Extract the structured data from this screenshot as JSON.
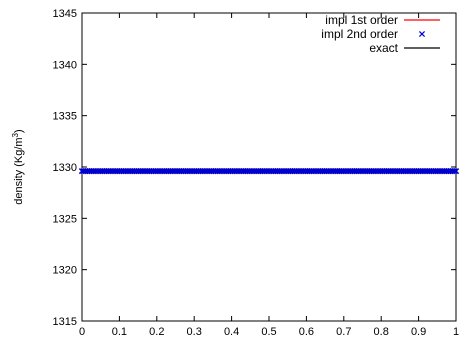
{
  "chart_data": {
    "type": "line",
    "title": "",
    "xlabel": "",
    "ylabel": "density (Kg/m",
    "ylabel_sup": "3",
    "ylabel_close": ")",
    "xlim": [
      0,
      1
    ],
    "ylim": [
      1315,
      1345
    ],
    "xticks": [
      0,
      0.1,
      0.2,
      0.3,
      0.4,
      0.5,
      0.6,
      0.7,
      0.8,
      0.9,
      1
    ],
    "xtick_labels": [
      "0",
      "0.1",
      "0.2",
      "0.3",
      "0.4",
      "0.5",
      "0.6",
      "0.7",
      "0.8",
      "0.9",
      "1"
    ],
    "yticks": [
      1315,
      1320,
      1325,
      1330,
      1335,
      1340,
      1345
    ],
    "ytick_labels": [
      "1315",
      "1320",
      "1325",
      "1330",
      "1335",
      "1340",
      "1345"
    ],
    "grid": false,
    "legend_position": "top-right",
    "series": [
      {
        "name": "impl 1st order",
        "style": "line",
        "color": "#ff0000",
        "x": [
          0,
          1
        ],
        "y": [
          1329.6,
          1329.6
        ]
      },
      {
        "name": "impl 2nd order",
        "style": "markers",
        "marker": "x",
        "color": "#0000cc",
        "x_range": [
          0,
          1
        ],
        "point_count": 200,
        "y_constant": 1329.6
      },
      {
        "name": "exact",
        "style": "line",
        "color": "#000000",
        "x": [
          0,
          1
        ],
        "y": [
          1329.6,
          1329.6
        ]
      }
    ]
  }
}
